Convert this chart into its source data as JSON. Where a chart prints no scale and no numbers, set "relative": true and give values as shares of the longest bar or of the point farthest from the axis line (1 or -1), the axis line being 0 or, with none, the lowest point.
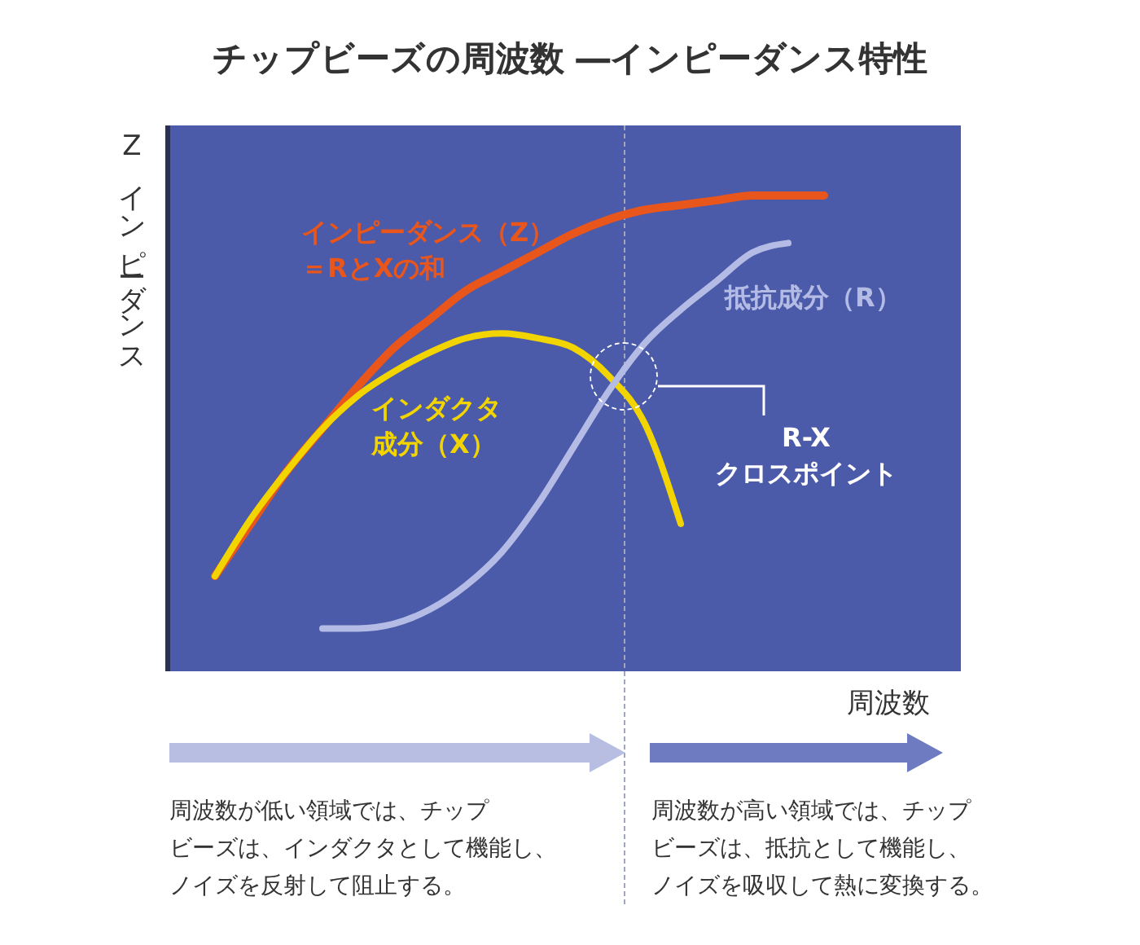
{
  "chart_data": {
    "type": "line",
    "relative": true,
    "title": "チップビーズの周波数 ―インピーダンス特性",
    "xlabel": "周波数",
    "ylabel": "Zインピーダンス",
    "categories": [
      null,
      null,
      null,
      null,
      null,
      null,
      null,
      null,
      null,
      null,
      null,
      null,
      null,
      null,
      null,
      null,
      null,
      null,
      null,
      null,
      null,
      null
    ],
    "series": [
      {
        "name": "インピーダンス（Z）＝RとXの和",
        "color": "#e8561c",
        "values": [
          null,
          0.2,
          0.31,
          0.42,
          0.51,
          0.6,
          0.68,
          0.74,
          0.8,
          0.84,
          0.88,
          0.92,
          0.95,
          0.97,
          0.98,
          0.99,
          1,
          1,
          1,
          null,
          null,
          null
        ]
      },
      {
        "name": "インダクタ成分（X）",
        "color": "#f2d500",
        "values": [
          null,
          0.2,
          0.32,
          0.42,
          0.51,
          0.58,
          0.63,
          0.67,
          0.7,
          0.71,
          0.7,
          0.68,
          0.62,
          0.52,
          0.31,
          null,
          null,
          null,
          null,
          null,
          null,
          null
        ]
      },
      {
        "name": "抵抗成分（R）",
        "color": "#b4bce6",
        "values": [
          null,
          null,
          null,
          null,
          0.09,
          0.09,
          0.1,
          0.13,
          0.18,
          0.25,
          0.35,
          0.47,
          0.59,
          0.69,
          0.76,
          0.82,
          0.88,
          0.9,
          null,
          null,
          null,
          null
        ]
      }
    ],
    "annotations": [
      "R-Xクロスポイント",
      "周波数が低い領域では、チップビーズは、インダクタとして機能し、ノイズを反射して阻止する。",
      "周波数が高い領域では、チップビーズは、抵抗として機能し、ノイズを吸収して熱に変換する。"
    ],
    "legend": false,
    "grid": false,
    "marker": "none",
    "line_style": "solid"
  }
}
